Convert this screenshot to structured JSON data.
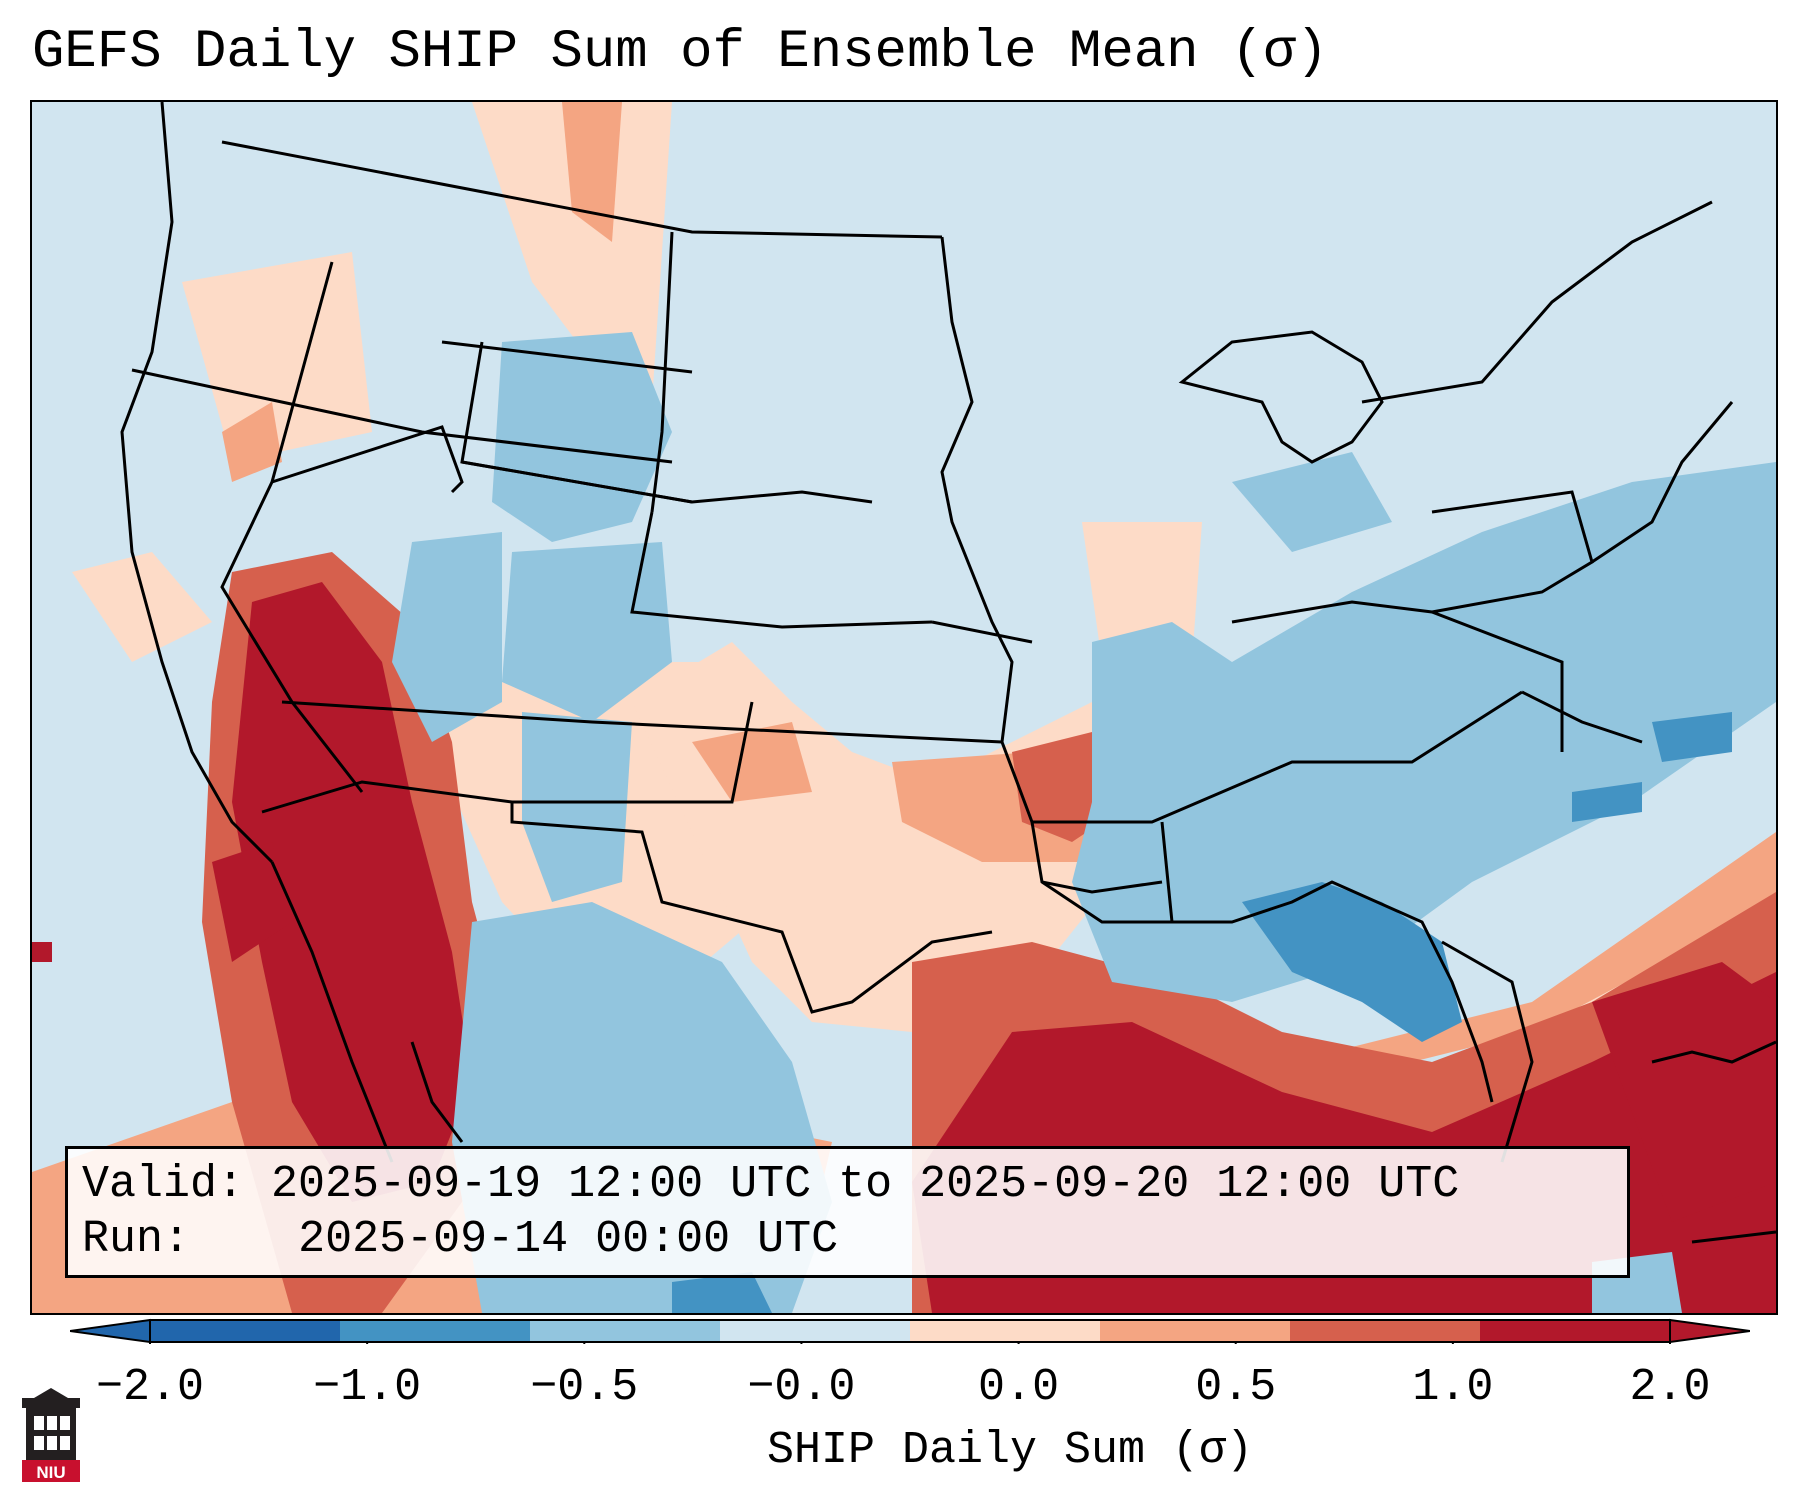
{
  "title": "GEFS Daily SHIP Sum of Ensemble Mean (σ)",
  "info": {
    "valid_label": "Valid:",
    "valid_value": "2025-09-19 12:00 UTC to 2025-09-20 12:00 UTC",
    "run_label": "Run:",
    "run_value": "2025-09-14 00:00 UTC"
  },
  "colorbar": {
    "label": "SHIP Daily Sum (σ)",
    "ticks": [
      "−2.0",
      "−1.0",
      "−0.5",
      "−0.0",
      "0.0",
      "0.5",
      "1.0",
      "2.0"
    ],
    "colors": [
      "#2166ac",
      "#4393c3",
      "#92c5de",
      "#d1e5f0",
      "#fddbc7",
      "#f4a582",
      "#d6604d",
      "#b2182b"
    ],
    "extend": "both"
  },
  "map": {
    "region": "Contiguous United States",
    "neutral_color": "#d1e5f0"
  },
  "logo": {
    "text": "NIU"
  }
}
